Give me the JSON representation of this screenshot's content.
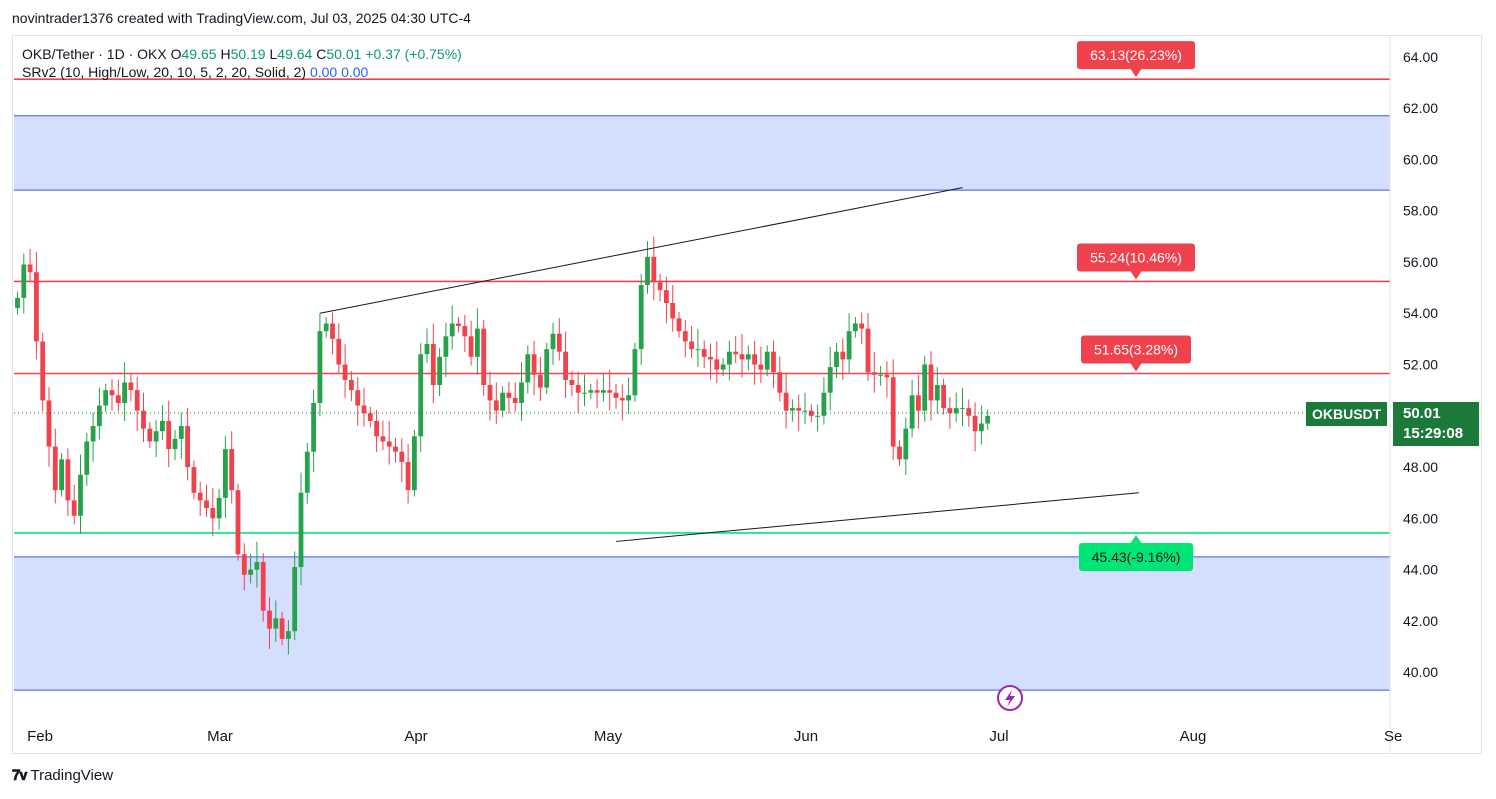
{
  "header": {
    "attribution": "novintrader1376 created with TradingView.com, Jul 03, 2025 04:30 UTC-4"
  },
  "legend": {
    "symbol_line": "OKB/Tether · 1D · OKX",
    "o_label": "O",
    "o_value": "49.65",
    "h_label": "H",
    "h_value": "50.19",
    "l_label": "L",
    "l_value": "49.64",
    "c_label": "C",
    "c_value": "50.01",
    "change": "+0.37 (+0.75%)",
    "indicator": "SRv2 (10, High/Low, 20, 10, 5, 2, 20, Solid, 2)",
    "ind_v1": "0.00",
    "ind_v2": "0.00"
  },
  "price_label": {
    "symbol": "OKBUSDT",
    "price": "50.01",
    "countdown": "15:29:08"
  },
  "footer": {
    "brand": "TradingView"
  },
  "colors": {
    "up": "#26a34a",
    "down": "#f0424d",
    "zone": "#d4deff",
    "support": "#00e676",
    "resistance": "#f0424d"
  },
  "chart_data": {
    "type": "candlestick",
    "y_ticks": [
      "64.00",
      "62.00",
      "60.00",
      "58.00",
      "56.00",
      "54.00",
      "52.00",
      "50.00",
      "48.00",
      "46.00",
      "44.00",
      "42.00",
      "40.00"
    ],
    "x_ticks": [
      "Feb",
      "Mar",
      "Apr",
      "May",
      "Jun",
      "Jul",
      "Aug",
      "Se"
    ],
    "ylim": [
      39,
      65
    ],
    "levels": [
      {
        "price": 63.13,
        "label": "63.13(26.23%)",
        "kind": "resistance"
      },
      {
        "price": 55.24,
        "label": "55.24(10.46%)",
        "kind": "resistance"
      },
      {
        "price": 51.65,
        "label": "51.65(3.28%)",
        "kind": "resistance"
      },
      {
        "price": 45.43,
        "label": "45.43(-9.16%)",
        "kind": "support"
      }
    ],
    "zones": [
      {
        "from": 58.8,
        "to": 61.7
      },
      {
        "from": 39.3,
        "to": 44.5
      }
    ],
    "trendlines": [
      {
        "from": {
          "day": 48,
          "price": 54.0
        },
        "to": {
          "day": 150,
          "price": 58.9
        }
      },
      {
        "from": {
          "day": 95,
          "price": 45.1
        },
        "to": {
          "day": 178,
          "price": 47.0
        }
      }
    ],
    "current_price": 50.01,
    "closes": [
      54.6,
      55.9,
      55.6,
      52.9,
      50.6,
      48.8,
      47.1,
      48.3,
      46.7,
      46.1,
      47.7,
      49.0,
      49.6,
      50.4,
      51.0,
      50.8,
      50.5,
      51.3,
      51.0,
      50.2,
      49.5,
      49.0,
      49.4,
      49.8,
      48.7,
      49.1,
      49.6,
      48.0,
      47.0,
      46.7,
      46.4,
      46.0,
      46.8,
      48.7,
      47.1,
      44.6,
      43.8,
      44.0,
      44.3,
      42.4,
      41.7,
      42.1,
      41.3,
      41.6,
      44.1,
      47.0,
      48.6,
      50.5,
      53.3,
      53.6,
      53.0,
      52.0,
      51.4,
      51.0,
      50.4,
      50.1,
      49.8,
      49.2,
      49.0,
      48.8,
      48.6,
      48.2,
      47.1,
      49.2,
      52.4,
      52.8,
      51.2,
      52.3,
      53.1,
      53.6,
      53.5,
      53.1,
      52.3,
      53.4,
      51.2,
      50.6,
      50.2,
      50.9,
      50.7,
      50.5,
      51.3,
      52.4,
      51.6,
      51.1,
      52.6,
      53.2,
      52.5,
      51.4,
      51.2,
      50.9,
      50.9,
      51.0,
      50.9,
      51.0,
      50.9,
      50.7,
      50.6,
      50.8,
      52.6,
      55.1,
      56.2,
      55.2,
      54.9,
      54.4,
      53.8,
      53.3,
      52.9,
      52.6,
      52.6,
      52.3,
      52.2,
      51.8,
      52.0,
      52.5,
      52.4,
      52.2,
      52.4,
      52.0,
      51.8,
      52.5,
      51.7,
      50.9,
      50.2,
      50.3,
      50.2,
      50.2,
      50.0,
      50.0,
      50.9,
      51.9,
      52.5,
      52.2,
      53.3,
      53.6,
      53.4,
      51.7,
      51.6,
      51.6,
      51.5,
      48.8,
      48.3,
      49.5,
      50.8,
      50.2,
      52.0,
      50.6,
      51.2,
      50.3,
      50.1,
      50.3,
      50.3,
      50.0,
      49.4,
      49.7,
      50.0
    ]
  }
}
